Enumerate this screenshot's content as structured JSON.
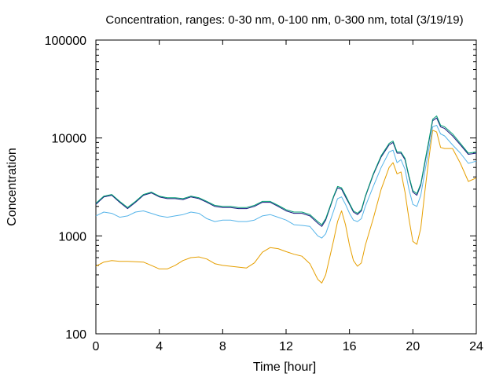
{
  "chart_data": {
    "type": "line",
    "title": "Concentration, ranges: 0-30 nm, 0-100 nm, 0-300 nm, total (3/19/19)",
    "xlabel": "Time [hour]",
    "ylabel": "Concentration",
    "xlim": [
      0,
      24
    ],
    "ylim": [
      100,
      100000
    ],
    "yscale": "log",
    "grid": false,
    "legend": "none",
    "xticks": [
      0,
      4,
      8,
      12,
      16,
      20,
      24
    ],
    "xtick_labels": [
      "0",
      "4",
      "8",
      "12",
      "16",
      "20",
      "24"
    ],
    "yticks": [
      100,
      1000,
      10000,
      100000
    ],
    "ytick_labels": [
      "100",
      "1000",
      "10000",
      "100000"
    ],
    "series": [
      {
        "color": "#e69f00",
        "x": [
          0,
          0.5,
          1,
          1.5,
          2,
          2.5,
          3,
          3.5,
          4,
          4.5,
          5,
          5.5,
          6,
          6.5,
          7,
          7.5,
          8,
          8.5,
          9,
          9.5,
          10,
          10.5,
          11,
          11.5,
          12,
          12.5,
          13,
          13.5,
          14,
          14.25,
          14.5,
          15,
          15.25,
          15.5,
          15.75,
          16,
          16.25,
          16.5,
          16.75,
          17,
          17.5,
          18,
          18.5,
          18.75,
          19,
          19.25,
          19.5,
          19.75,
          20,
          20.25,
          20.5,
          20.75,
          21,
          21.25,
          21.5,
          21.75,
          22,
          22.5,
          23,
          23.5,
          24
        ],
        "y": [
          490,
          540,
          560,
          550,
          550,
          545,
          540,
          500,
          460,
          460,
          500,
          560,
          600,
          610,
          580,
          520,
          500,
          490,
          480,
          470,
          530,
          680,
          760,
          740,
          690,
          650,
          620,
          520,
          360,
          330,
          400,
          900,
          1400,
          1800,
          1300,
          800,
          560,
          490,
          530,
          800,
          1500,
          3000,
          5000,
          5600,
          4300,
          4500,
          2800,
          1500,
          880,
          820,
          1200,
          2800,
          6000,
          12000,
          11500,
          8000,
          7800,
          7800,
          5500,
          3600,
          3900
        ]
      },
      {
        "color": "#56b4e9",
        "x": [
          0,
          0.5,
          1,
          1.5,
          2,
          2.5,
          3,
          3.5,
          4,
          4.5,
          5,
          5.5,
          6,
          6.5,
          7,
          7.5,
          8,
          8.5,
          9,
          9.5,
          10,
          10.5,
          11,
          11.5,
          12,
          12.5,
          13,
          13.5,
          14,
          14.25,
          14.5,
          15,
          15.25,
          15.5,
          15.75,
          16,
          16.25,
          16.5,
          16.75,
          17,
          17.5,
          18,
          18.5,
          18.75,
          19,
          19.25,
          19.5,
          19.75,
          20,
          20.25,
          20.5,
          20.75,
          21,
          21.25,
          21.5,
          21.75,
          22,
          22.5,
          23,
          23.5,
          24
        ],
        "y": [
          1600,
          1750,
          1700,
          1550,
          1600,
          1750,
          1800,
          1700,
          1600,
          1550,
          1600,
          1650,
          1750,
          1700,
          1500,
          1400,
          1450,
          1450,
          1400,
          1400,
          1450,
          1600,
          1650,
          1550,
          1450,
          1300,
          1280,
          1250,
          1000,
          950,
          1050,
          1800,
          2400,
          2500,
          2100,
          1700,
          1450,
          1400,
          1500,
          2000,
          3200,
          5000,
          7200,
          7500,
          5600,
          6000,
          4800,
          3000,
          2100,
          2000,
          2600,
          4500,
          7500,
          13000,
          13500,
          11000,
          10500,
          8500,
          7000,
          5500,
          5800
        ]
      },
      {
        "color": "#1a1a80",
        "x": [
          0,
          0.5,
          1,
          1.5,
          2,
          2.5,
          3,
          3.5,
          4,
          4.5,
          5,
          5.5,
          6,
          6.5,
          7,
          7.5,
          8,
          8.5,
          9,
          9.5,
          10,
          10.5,
          11,
          11.5,
          12,
          12.5,
          13,
          13.5,
          14,
          14.25,
          14.5,
          15,
          15.25,
          15.5,
          15.75,
          16,
          16.25,
          16.5,
          16.75,
          17,
          17.5,
          18,
          18.5,
          18.75,
          19,
          19.25,
          19.5,
          19.75,
          20,
          20.25,
          20.5,
          20.75,
          21,
          21.25,
          21.5,
          21.75,
          22,
          22.5,
          23,
          23.5,
          24
        ],
        "y": [
          2100,
          2500,
          2600,
          2200,
          1900,
          2200,
          2600,
          2750,
          2500,
          2400,
          2400,
          2350,
          2500,
          2400,
          2200,
          2000,
          1950,
          1950,
          1900,
          1900,
          2000,
          2200,
          2200,
          2000,
          1800,
          1700,
          1700,
          1600,
          1350,
          1250,
          1450,
          2500,
          3100,
          3000,
          2500,
          2100,
          1750,
          1650,
          1800,
          2500,
          4200,
          6400,
          8500,
          9000,
          7000,
          7000,
          6000,
          4000,
          2800,
          2600,
          3300,
          5500,
          9000,
          15000,
          16000,
          13000,
          12500,
          10500,
          8500,
          6800,
          7000
        ]
      },
      {
        "color": "#009e73",
        "x": [
          0,
          0.5,
          1,
          1.5,
          2,
          2.5,
          3,
          3.5,
          4,
          4.5,
          5,
          5.5,
          6,
          6.5,
          7,
          7.5,
          8,
          8.5,
          9,
          9.5,
          10,
          10.5,
          11,
          11.5,
          12,
          12.5,
          13,
          13.5,
          14,
          14.25,
          14.5,
          15,
          15.25,
          15.5,
          15.75,
          16,
          16.25,
          16.5,
          16.75,
          17,
          17.5,
          18,
          18.5,
          18.75,
          19,
          19.25,
          19.5,
          19.75,
          20,
          20.25,
          20.5,
          20.75,
          21,
          21.25,
          21.5,
          21.75,
          22,
          22.5,
          23,
          23.5,
          24
        ],
        "y": [
          2150,
          2550,
          2650,
          2250,
          1950,
          2250,
          2650,
          2800,
          2550,
          2450,
          2450,
          2400,
          2550,
          2450,
          2250,
          2050,
          2000,
          2000,
          1950,
          1950,
          2050,
          2250,
          2250,
          2050,
          1850,
          1750,
          1750,
          1650,
          1400,
          1300,
          1500,
          2550,
          3200,
          3100,
          2600,
          2150,
          1800,
          1700,
          1850,
          2550,
          4300,
          6600,
          8800,
          9300,
          7200,
          7200,
          6200,
          4100,
          2900,
          2700,
          3400,
          5700,
          9300,
          15500,
          16800,
          13500,
          13000,
          11000,
          8800,
          7000,
          7200
        ]
      }
    ]
  }
}
